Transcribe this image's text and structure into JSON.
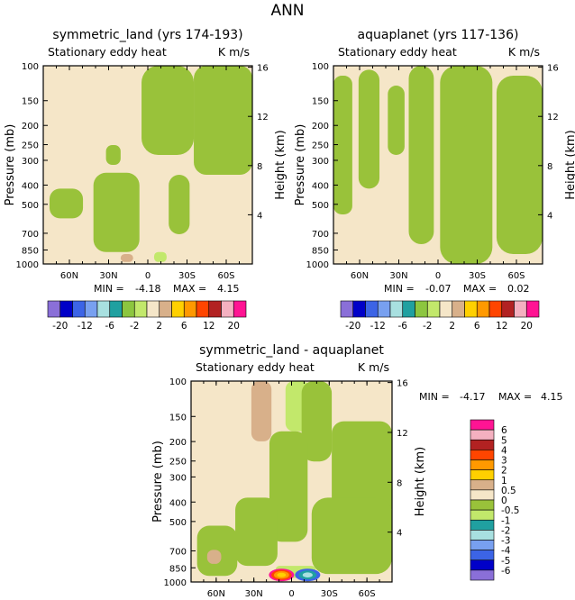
{
  "page_title": "ANN",
  "colors": {
    "tan": "#f5e6c8",
    "green": "#99c23a",
    "light_green": "#c2e86b",
    "brown": "#d8b08a",
    "frame": "#000000"
  },
  "chart_data": [
    {
      "type": "heatmap",
      "title": "symmetric_land (yrs 174-193)",
      "subtitle_left": "Stationary eddy heat",
      "subtitle_right": "K m/s",
      "ylabel": "Pressure (mb)",
      "y2label": "Height (km)",
      "yticks": [
        "100",
        "150",
        "200",
        "250",
        "300",
        "400",
        "500",
        "700",
        "850",
        "1000"
      ],
      "y2ticks": [
        "16",
        "12",
        "8",
        "4"
      ],
      "xticks": [
        "60N",
        "30N",
        "0",
        "30S",
        "60S"
      ],
      "stats": {
        "min_label": "MIN =",
        "min": "-4.18",
        "max_label": "MAX =",
        "max": "4.15"
      },
      "colorbar_labels": [
        "-20",
        "-12",
        "-6",
        "-2",
        "2",
        "6",
        "12",
        "20"
      ]
    },
    {
      "type": "heatmap",
      "title": "aquaplanet (yrs 117-136)",
      "subtitle_left": "Stationary eddy heat",
      "subtitle_right": "K m/s",
      "ylabel": "Pressure (mb)",
      "y2label": "Height (km)",
      "yticks": [
        "100",
        "150",
        "200",
        "250",
        "300",
        "400",
        "500",
        "700",
        "850",
        "1000"
      ],
      "y2ticks": [
        "16",
        "12",
        "8",
        "4"
      ],
      "xticks": [
        "60N",
        "30N",
        "0",
        "30S",
        "60S"
      ],
      "stats": {
        "min_label": "MIN =",
        "min": "-0.07",
        "max_label": "MAX =",
        "max": "0.02"
      },
      "colorbar_labels": [
        "-20",
        "-12",
        "-6",
        "-2",
        "2",
        "6",
        "12",
        "20"
      ]
    },
    {
      "type": "heatmap",
      "title": "symmetric_land - aquaplanet",
      "subtitle_left": "Stationary eddy heat",
      "subtitle_right": "K m/s",
      "ylabel": "Pressure (mb)",
      "y2label": "Height (km)",
      "yticks": [
        "100",
        "150",
        "200",
        "250",
        "300",
        "400",
        "500",
        "700",
        "850",
        "1000"
      ],
      "y2ticks": [
        "16",
        "12",
        "8",
        "4"
      ],
      "xticks": [
        "60N",
        "30N",
        "0",
        "30S",
        "60S"
      ],
      "stats": {
        "min_label": "MIN =",
        "min": "-4.17",
        "max_label": "MAX =",
        "max": "4.15"
      },
      "colorbar_labels": [
        "6",
        "5",
        "4",
        "3",
        "2",
        "1",
        "0.5",
        "0",
        "-0.5",
        "-1",
        "-2",
        "-3",
        "-4",
        "-5",
        "-6"
      ]
    }
  ],
  "colorbar_colors": {
    "top_panels": [
      "#8a6fd8",
      "#0000c8",
      "#3c64e6",
      "#78a0f0",
      "#a8e0e0",
      "#20a0a0",
      "#8cc63f",
      "#c2e86b",
      "#f5e6c8",
      "#d8b08a",
      "#ffd000",
      "#ff9900",
      "#ff4500",
      "#b22222",
      "#f4b0c0",
      "#ff1493"
    ],
    "diff_panel": [
      "#ff1493",
      "#f4b0c0",
      "#b22222",
      "#ff4500",
      "#ff9900",
      "#ffd000",
      "#d8b08a",
      "#f5e6c8",
      "#99c23a",
      "#c2e86b",
      "#20a0a0",
      "#a8e0e0",
      "#78a0f0",
      "#3c64e6",
      "#0000c8",
      "#8a6fd8"
    ]
  }
}
